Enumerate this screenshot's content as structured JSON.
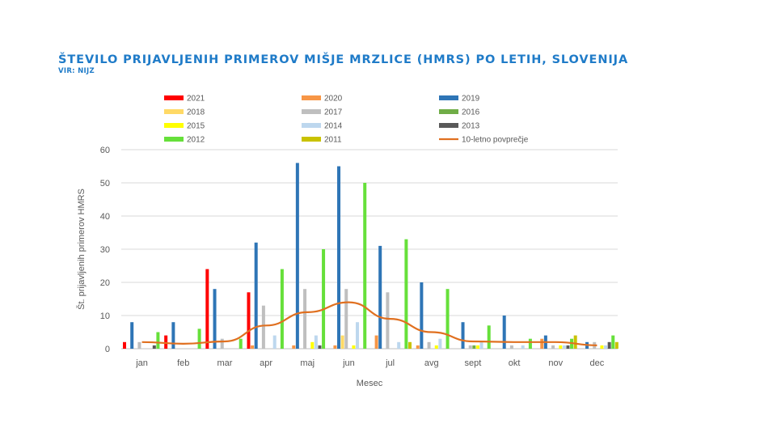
{
  "title": "ŠTEVILO PRIJAVLJENIH PRIMEROV MIŠJE MRZLICE (HMRS) PO LETIH, SLOVENIJA",
  "subtitle": "VIR: NIJZ",
  "chart_data": {
    "type": "bar",
    "xlabel": "Mesec",
    "ylabel": "Št. prijavljenih primerov HMRS",
    "ylim": [
      0,
      60
    ],
    "yticks": [
      0,
      10,
      20,
      30,
      40,
      50,
      60
    ],
    "grid": true,
    "legend": "top",
    "categories": [
      "jan",
      "feb",
      "mar",
      "apr",
      "maj",
      "jun",
      "jul",
      "avg",
      "sept",
      "okt",
      "nov",
      "dec"
    ],
    "series": [
      {
        "name": "2021",
        "color": "#FF0000",
        "values": [
          2,
          4,
          24,
          17,
          0,
          0,
          0,
          0,
          0,
          0,
          0,
          0
        ]
      },
      {
        "name": "2020",
        "color": "#F79646",
        "values": [
          0,
          0,
          0,
          1,
          1,
          1,
          4,
          1,
          0,
          0,
          3,
          0
        ]
      },
      {
        "name": "2019",
        "color": "#2E75B6",
        "values": [
          8,
          8,
          18,
          32,
          56,
          55,
          31,
          20,
          8,
          10,
          4,
          2
        ]
      },
      {
        "name": "2018",
        "color": "#FFD966",
        "values": [
          0,
          0,
          0,
          0,
          0,
          4,
          0,
          0,
          0,
          0,
          0,
          0
        ]
      },
      {
        "name": "2017",
        "color": "#BFBFBF",
        "values": [
          2,
          0,
          3,
          13,
          18,
          18,
          17,
          2,
          1,
          1,
          1,
          2
        ]
      },
      {
        "name": "2016",
        "color": "#70AD47",
        "values": [
          0,
          0,
          0,
          0,
          0,
          0,
          0,
          0,
          1,
          0,
          0,
          0
        ]
      },
      {
        "name": "2015",
        "color": "#FFFF00",
        "values": [
          0,
          0,
          0,
          0,
          2,
          1,
          0,
          1,
          1,
          0,
          1,
          1
        ]
      },
      {
        "name": "2014",
        "color": "#BDD7EE",
        "values": [
          0,
          0,
          0,
          4,
          4,
          8,
          2,
          3,
          2,
          1,
          1,
          1
        ]
      },
      {
        "name": "2013",
        "color": "#595959",
        "values": [
          1,
          0,
          0,
          0,
          1,
          0,
          0,
          0,
          0,
          0,
          1,
          2
        ]
      },
      {
        "name": "2012",
        "color": "#66E03A",
        "values": [
          5,
          6,
          3,
          24,
          30,
          50,
          33,
          18,
          7,
          3,
          3,
          4
        ]
      },
      {
        "name": "2011",
        "color": "#C9C200",
        "values": [
          0,
          0,
          0,
          0,
          0,
          0,
          2,
          0,
          0,
          0,
          4,
          2
        ]
      }
    ],
    "line": {
      "name": "10-letno povprečje",
      "color": "#E07020",
      "values": [
        2,
        1.5,
        2.2,
        7,
        11,
        14,
        9,
        5,
        2.2,
        2,
        2,
        1
      ]
    }
  }
}
